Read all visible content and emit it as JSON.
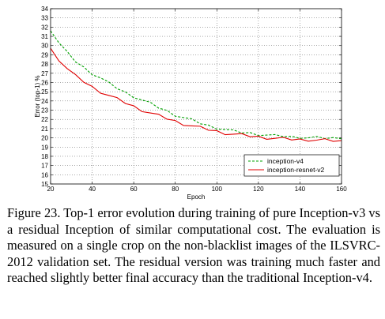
{
  "chart_data": {
    "type": "line",
    "title": "",
    "xlabel": "Epoch",
    "ylabel": "Error (top-1) %",
    "xlim": [
      20,
      160
    ],
    "ylim": [
      15,
      34
    ],
    "x_ticks": [
      20,
      40,
      60,
      80,
      100,
      120,
      140,
      160
    ],
    "y_ticks": [
      15,
      16,
      17,
      18,
      19,
      20,
      21,
      22,
      23,
      24,
      25,
      26,
      27,
      28,
      29,
      30,
      31,
      32,
      33,
      34
    ],
    "grid": true,
    "legend_position": "bottom-right",
    "series": [
      {
        "name": "inception-v4",
        "color": "#00a000",
        "style": "dashed",
        "x": [
          20,
          24,
          28,
          32,
          36,
          40,
          44,
          48,
          52,
          56,
          60,
          64,
          68,
          72,
          76,
          80,
          84,
          88,
          92,
          96,
          100,
          104,
          108,
          112,
          116,
          120,
          124,
          128,
          132,
          136,
          140,
          144,
          148,
          152,
          156,
          160
        ],
        "values": [
          31.6,
          30.3,
          29.2,
          28.3,
          27.6,
          27.0,
          26.5,
          25.9,
          25.4,
          24.9,
          24.5,
          24.1,
          23.7,
          23.3,
          22.9,
          22.5,
          22.2,
          21.9,
          21.6,
          21.3,
          21.1,
          20.9,
          20.7,
          20.6,
          20.5,
          20.4,
          20.3,
          20.2,
          20.2,
          20.1,
          20.1,
          20.0,
          20.0,
          20.0,
          19.95,
          19.9
        ]
      },
      {
        "name": "inception-resnet-v2",
        "color": "#e00000",
        "style": "solid",
        "x": [
          20,
          24,
          28,
          32,
          36,
          40,
          44,
          48,
          52,
          56,
          60,
          64,
          68,
          72,
          76,
          80,
          84,
          88,
          92,
          96,
          100,
          104,
          108,
          112,
          116,
          120,
          124,
          128,
          132,
          136,
          140,
          144,
          148,
          152,
          156,
          160
        ],
        "values": [
          29.7,
          28.5,
          27.5,
          26.7,
          26.1,
          25.5,
          25.0,
          24.6,
          24.2,
          23.8,
          23.4,
          23.0,
          22.7,
          22.4,
          22.1,
          21.8,
          21.5,
          21.3,
          21.1,
          20.9,
          20.7,
          20.5,
          20.4,
          20.3,
          20.2,
          20.1,
          20.0,
          19.95,
          19.9,
          19.85,
          19.8,
          19.8,
          19.75,
          19.75,
          19.7,
          19.7
        ]
      }
    ]
  },
  "caption": "Figure 23. Top-1 error evolution during training of pure Inception-v3 vs a residual Inception of similar computational cost. The evaluation is measured on a single crop on the non-blacklist images of the ILSVRC-2012 validation set. The residual version was training much faster and reached slightly better final accuracy than the traditional Inception-v4."
}
